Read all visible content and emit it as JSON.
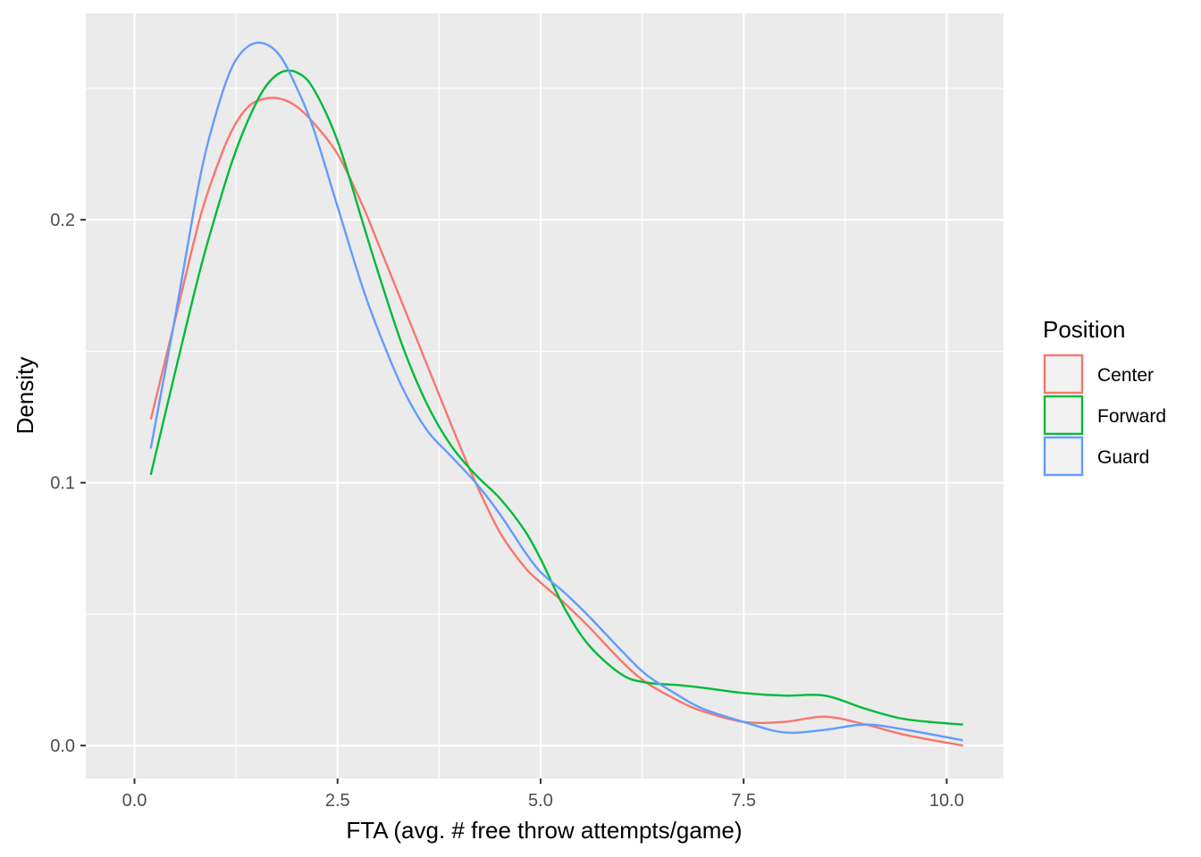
{
  "chart_data": {
    "type": "line",
    "chart_kind": "density",
    "title": "",
    "xlabel": "FTA (avg. # free throw attempts/game)",
    "ylabel": "Density",
    "xlim": [
      -0.6,
      10.7
    ],
    "ylim": [
      -0.0125,
      0.2785
    ],
    "x_ticks": [
      0.0,
      2.5,
      5.0,
      7.5,
      10.0
    ],
    "x_tick_labels": [
      "0.0",
      "2.5",
      "5.0",
      "7.5",
      "10.0"
    ],
    "y_ticks": [
      0.0,
      0.1,
      0.2
    ],
    "y_tick_labels": [
      "0.0",
      "0.1",
      "0.2"
    ],
    "grid": true,
    "legend": {
      "title": "Position",
      "placement": "right"
    },
    "x": [
      0.2,
      0.5,
      0.8,
      1.0,
      1.2,
      1.4,
      1.6,
      1.8,
      2.0,
      2.2,
      2.5,
      2.8,
      3.0,
      3.3,
      3.6,
      3.9,
      4.2,
      4.5,
      4.8,
      5.0,
      5.3,
      5.6,
      6.0,
      6.3,
      6.7,
      7.0,
      7.5,
      8.0,
      8.5,
      9.0,
      9.5,
      10.2
    ],
    "series": [
      {
        "name": "Center",
        "color": "#f8766d",
        "values": [
          0.124,
          0.162,
          0.2,
          0.219,
          0.234,
          0.243,
          0.246,
          0.246,
          0.243,
          0.237,
          0.225,
          0.206,
          0.191,
          0.168,
          0.145,
          0.122,
          0.1,
          0.081,
          0.068,
          0.062,
          0.054,
          0.045,
          0.032,
          0.024,
          0.017,
          0.013,
          0.009,
          0.009,
          0.011,
          0.008,
          0.004,
          0.0
        ]
      },
      {
        "name": "Forward",
        "color": "#00ba38",
        "values": [
          0.103,
          0.142,
          0.18,
          0.202,
          0.222,
          0.238,
          0.25,
          0.256,
          0.256,
          0.25,
          0.23,
          0.2,
          0.18,
          0.152,
          0.13,
          0.114,
          0.103,
          0.094,
          0.082,
          0.071,
          0.052,
          0.038,
          0.027,
          0.024,
          0.023,
          0.022,
          0.02,
          0.019,
          0.019,
          0.014,
          0.01,
          0.008
        ]
      },
      {
        "name": "Guard",
        "color": "#619cff",
        "values": [
          0.113,
          0.163,
          0.215,
          0.24,
          0.258,
          0.266,
          0.267,
          0.262,
          0.25,
          0.235,
          0.205,
          0.175,
          0.158,
          0.136,
          0.12,
          0.11,
          0.1,
          0.088,
          0.074,
          0.066,
          0.058,
          0.049,
          0.036,
          0.027,
          0.019,
          0.014,
          0.009,
          0.005,
          0.006,
          0.008,
          0.006,
          0.002
        ]
      }
    ]
  }
}
